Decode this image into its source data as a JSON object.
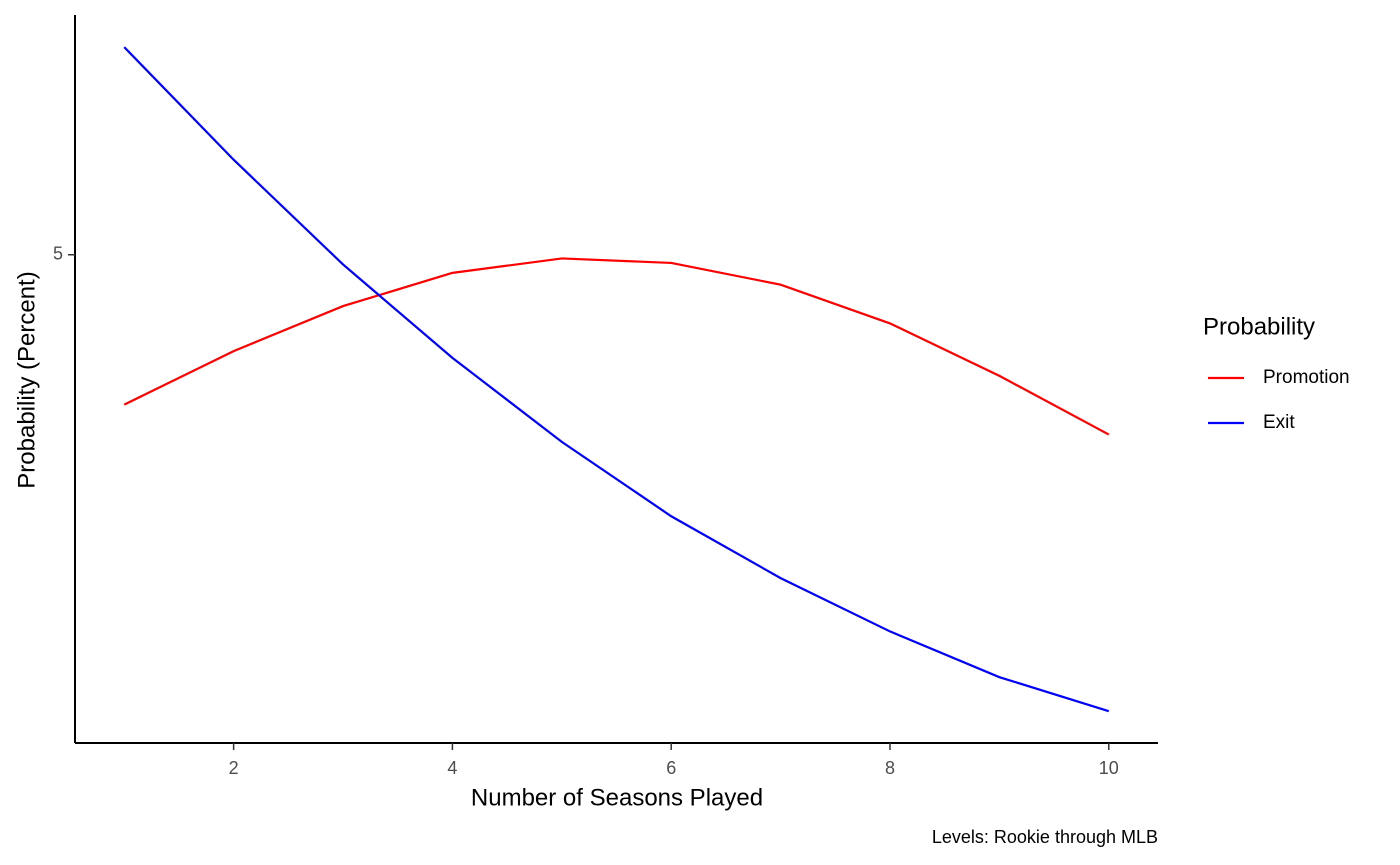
{
  "chart_data": {
    "type": "line",
    "x_label": "Number of Seasons Played",
    "y_label": "Probability (Percent)",
    "caption": "Levels: Rookie through MLB",
    "legend_title": "Probability",
    "legend_position": "right",
    "log_scale": true,
    "grid": false,
    "x": [
      1,
      2,
      3,
      4,
      5,
      6,
      7,
      8,
      9,
      10
    ],
    "series": [
      {
        "name": "Promotion",
        "color": "#ff0000",
        "values": [
          3.33,
          3.85,
          4.35,
          4.76,
          4.95,
          4.89,
          4.61,
          4.15,
          3.6,
          3.07
        ]
      },
      {
        "name": "Exit",
        "color": "#0000ff",
        "values": [
          8.78,
          6.47,
          4.87,
          3.78,
          3.01,
          2.46,
          2.08,
          1.8,
          1.59,
          1.45
        ]
      }
    ],
    "xlim": [
      0.55,
      10.45
    ],
    "xticks": [
      2,
      4,
      6,
      8,
      10
    ],
    "ylim": [
      1.33,
      9.58
    ],
    "yticks": [
      5
    ]
  }
}
